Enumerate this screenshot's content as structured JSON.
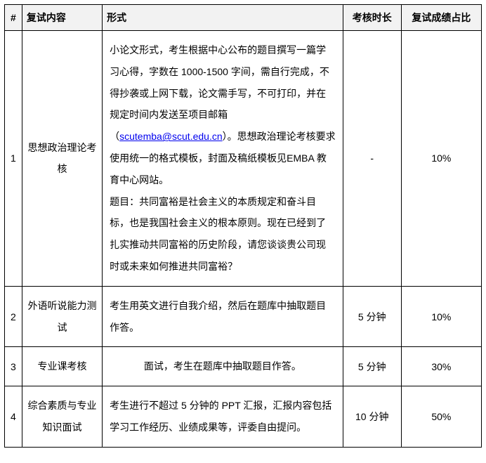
{
  "headers": {
    "num": "#",
    "content": "复试内容",
    "form": "形式",
    "duration": "考核时长",
    "weight": "复试成绩占比"
  },
  "rows": [
    {
      "num": "1",
      "content": "思想政治理论考核",
      "form_pre": "小论文形式，考生根据中心公布的题目撰写一篇学习心得，字数在 1000-1500 字间，需自行完成，不得抄袭或上网下载，论文需手写，不可打印，并在规定时间内发送至项目邮箱（",
      "email": "scutemba@scut.edu.cn",
      "form_post": "）。思想政治理论考核要求使用统一的格式模板，封面及稿纸模板见EMBA 教育中心网站。",
      "form_para2": "题目：共同富裕是社会主义的本质规定和奋斗目标，也是我国社会主义的根本原则。现在已经到了扎实推动共同富裕的历史阶段，请您谈谈贵公司现时或未来如何推进共同富裕？",
      "duration": "-",
      "weight": "10%"
    },
    {
      "num": "2",
      "content": "外语听说能力测试",
      "form": "考生用英文进行自我介绍，然后在题库中抽取题目作答。",
      "duration": "5 分钟",
      "weight": "10%"
    },
    {
      "num": "3",
      "content": "专业课考核",
      "form": "面试，考生在题库中抽取题目作答。",
      "duration": "5 分钟",
      "weight": "30%"
    },
    {
      "num": "4",
      "content": "综合素质与专业知识面试",
      "form": "考生进行不超过 5 分钟的 PPT 汇报，汇报内容包括学习工作经历、业绩成果等，评委自由提问。",
      "duration": "10 分钟",
      "weight": "50%"
    }
  ]
}
